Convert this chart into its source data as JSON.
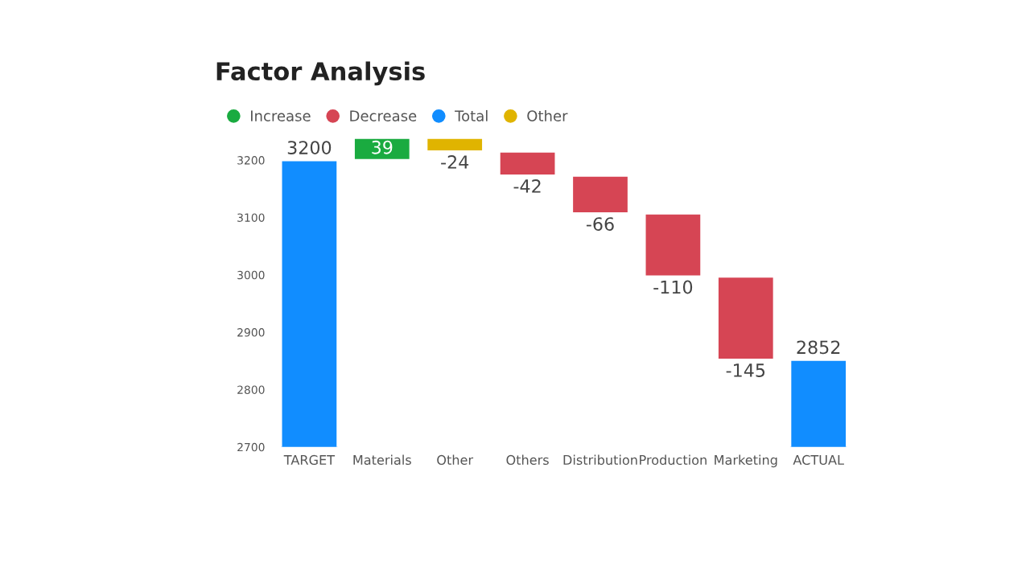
{
  "chart_data": {
    "type": "bar",
    "title": "Factor Analysis",
    "categories": [
      "TARGET",
      "Materials",
      "Other",
      "Others",
      "Distribution",
      "Production",
      "Marketing",
      "ACTUAL"
    ],
    "series": [
      {
        "name": "Increase",
        "color": "#1aab40",
        "values": [
          null,
          39,
          null,
          null,
          null,
          null,
          null,
          null
        ],
        "base": [
          null,
          3200,
          null,
          null,
          null,
          null,
          null,
          null
        ]
      },
      {
        "name": "Decrease",
        "color": "#d64554",
        "values": [
          null,
          null,
          null,
          -42,
          -66,
          -110,
          -145,
          null
        ],
        "base": [
          null,
          null,
          null,
          3215,
          3173,
          3107,
          2997,
          null
        ]
      },
      {
        "name": "Total",
        "color": "#118dff",
        "values": [
          3200,
          null,
          null,
          null,
          null,
          null,
          null,
          2852
        ]
      },
      {
        "name": "Other",
        "color": "#e0b400",
        "values": [
          null,
          null,
          -24,
          null,
          null,
          null,
          null,
          null
        ],
        "base": [
          null,
          null,
          3239,
          null,
          null,
          null,
          null,
          null
        ]
      }
    ],
    "ylim": [
      2700,
      3250
    ],
    "yticks": [
      2700,
      2800,
      2900,
      3000,
      3100,
      3200
    ],
    "data_labels": true,
    "legend": "top left",
    "grid": false
  }
}
